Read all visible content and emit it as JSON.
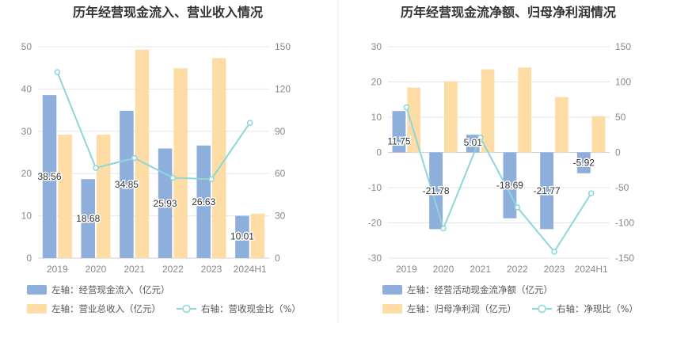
{
  "colors": {
    "bar_primary": "#8eaedc",
    "bar_secondary": "#fedca6",
    "line": "#8dd6da",
    "grid": "#e6e6ea",
    "divider": "#e8e8e8"
  },
  "chart_data": [
    {
      "type": "bar",
      "title": "历年经营现金流入、营业收入情况",
      "categories": [
        "2019",
        "2020",
        "2021",
        "2022",
        "2023",
        "2024H1"
      ],
      "left_axis": {
        "min": 0,
        "max": 50,
        "ticks": [
          "0",
          "10",
          "20",
          "30",
          "40",
          "50"
        ]
      },
      "right_axis": {
        "min": 0,
        "max": 150,
        "ticks": [
          "0",
          "30",
          "60",
          "90",
          "120",
          "150"
        ]
      },
      "grid": true,
      "legend_position": "bottom-left",
      "series": [
        {
          "name": "左轴：经营现金流入（亿元）",
          "kind": "bar",
          "axis": "left",
          "values": [
            38.56,
            18.68,
            34.85,
            25.93,
            26.63,
            10.01
          ],
          "labels": [
            "38.56",
            "18.68",
            "34.85",
            "25.93",
            "26.63",
            "10.01"
          ]
        },
        {
          "name": "左轴：营业总收入（亿元）",
          "kind": "bar",
          "axis": "left",
          "values": [
            29.2,
            29.2,
            49.3,
            44.9,
            47.3,
            10.5
          ]
        },
        {
          "name": "右轴：营收现金比（%）",
          "kind": "line",
          "axis": "right",
          "values": [
            132,
            64,
            71,
            57,
            56,
            96
          ]
        }
      ]
    },
    {
      "type": "bar",
      "title": "历年经营现金流净额、归母净利润情况",
      "categories": [
        "2019",
        "2020",
        "2021",
        "2022",
        "2023",
        "2024H1"
      ],
      "left_axis": {
        "min": -30,
        "max": 30,
        "ticks": [
          "-30",
          "-20",
          "-10",
          "0",
          "10",
          "20",
          "30"
        ]
      },
      "right_axis": {
        "min": -150,
        "max": 150,
        "ticks": [
          "-150",
          "-100",
          "-50",
          "0",
          "50",
          "100",
          "150"
        ]
      },
      "grid": true,
      "legend_position": "bottom-left",
      "series": [
        {
          "name": "左轴：经营活动现金流净额（亿元）",
          "kind": "bar",
          "axis": "left",
          "values": [
            11.75,
            -21.78,
            5.01,
            -18.69,
            -21.77,
            -5.92
          ],
          "labels": [
            "11.75",
            "-21.78",
            "5.01",
            "-18.69",
            "-21.77",
            "-5.92"
          ]
        },
        {
          "name": "左轴：归母净利润（亿元）",
          "kind": "bar",
          "axis": "left",
          "values": [
            18.4,
            20.2,
            23.6,
            24.1,
            15.7,
            10.3
          ]
        },
        {
          "name": "右轴：净现比（%）",
          "kind": "line",
          "axis": "right",
          "values": [
            64,
            -108,
            21,
            -78,
            -141,
            -58
          ]
        }
      ]
    }
  ]
}
